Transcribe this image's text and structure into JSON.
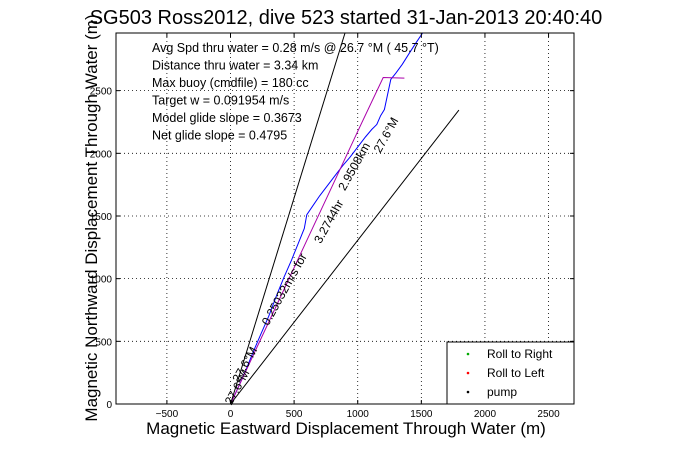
{
  "chart_data": {
    "type": "line",
    "title": "SG503 Ross2012, dive 523 started 31-Jan-2013 20:40:40",
    "xlabel": "Magnetic Eastward Displacement Through Water (m)",
    "ylabel": "Magnetic Northward Displacement Through Water (m)",
    "xlim": [
      -900,
      2700
    ],
    "ylim": [
      0,
      2960
    ],
    "xticks": [
      -500,
      0,
      500,
      1000,
      1500,
      2000,
      2500
    ],
    "yticks": [
      0,
      500,
      1000,
      1500,
      2000,
      2500
    ],
    "grid": true,
    "info_lines": [
      "Avg Spd thru water =  0.28 m/s @  26.7  °M ( 45.7 °T)",
      "Distance thru water =  3.34 km",
      "Max buoy (cmdfile) = 180 cc",
      "Target w = 0.091954 m/s",
      "Model glide slope = 0.3673",
      "Net glide slope = 0.4795"
    ],
    "series": [
      {
        "name": "",
        "color": "#0000ff",
        "x": [
          0,
          60,
          120,
          180,
          240,
          300,
          360,
          420,
          480,
          540,
          580,
          600,
          640,
          700,
          760,
          820,
          880,
          940,
          1000,
          1060,
          1110,
          1150,
          1180,
          1210,
          1260,
          1300,
          1350,
          1400,
          1450,
          1510
        ],
        "y": [
          0,
          130,
          270,
          420,
          560,
          700,
          860,
          1010,
          1150,
          1300,
          1400,
          1510,
          1570,
          1660,
          1740,
          1820,
          1900,
          1970,
          2050,
          2130,
          2190,
          2230,
          2300,
          2350,
          2590,
          2640,
          2710,
          2790,
          2870,
          2960
        ]
      },
      {
        "name": "",
        "color": "#aa00aa",
        "x": [
          0,
          200,
          400,
          600,
          800,
          1000,
          1200,
          1367
        ],
        "y": [
          0,
          435,
          870,
          1305,
          1740,
          2175,
          2605,
          2600
        ]
      },
      {
        "name": "",
        "color": "#000000",
        "x": [
          0,
          900
        ],
        "y": [
          0,
          2960
        ]
      },
      {
        "name": "",
        "color": "#000000",
        "x": [
          0,
          1795
        ],
        "y": [
          0,
          2345
        ]
      }
    ],
    "annotations": [
      {
        "text": "27.6°M",
        "x": 1250,
        "y": 2130,
        "angle": -61
      },
      {
        "text": "2.9508km",
        "x": 1000,
        "y": 1880,
        "angle": -61
      },
      {
        "text": "3.2744hr",
        "x": 800,
        "y": 1440,
        "angle": -61
      },
      {
        "text": "0.25032m/s for",
        "x": 450,
        "y": 900,
        "angle": -61
      },
      {
        "text": "27.6°M",
        "x": 140,
        "y": 300,
        "angle": -61
      },
      {
        "text": "27.6°M",
        "x": 80,
        "y": 120,
        "angle": -61
      }
    ],
    "legend": {
      "position": "bottom-right",
      "entries": [
        {
          "label": "Roll to Right",
          "color": "#00aa00"
        },
        {
          "label": "Roll to Left",
          "color": "#ff0000"
        },
        {
          "label": "pump",
          "color": "#000000"
        }
      ]
    }
  }
}
